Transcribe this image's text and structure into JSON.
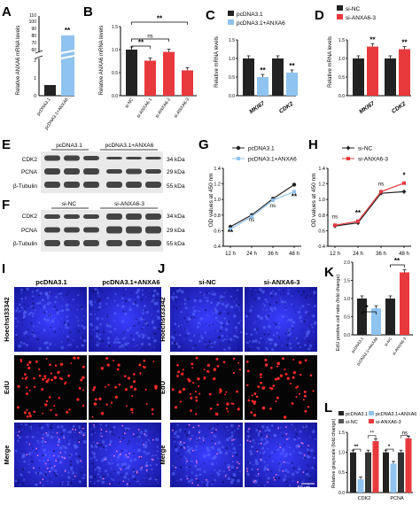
{
  "panels": {
    "A": {
      "letter": "A",
      "ylabel": "Relative ANXA6 mRNA levels",
      "yticks": [
        "0",
        "1",
        "2",
        "60",
        "70",
        "80",
        "90",
        "100",
        "110"
      ],
      "xticks": [
        "pcDNA3.1",
        "pcDNA3.1+ANXA6"
      ],
      "sig": "**"
    },
    "B": {
      "letter": "B",
      "ylabel": "Relative ANXA6 mRNA levels",
      "yticks": [
        "0.0",
        "0.5",
        "1.0",
        "1.5"
      ],
      "xticks": [
        "si-NC",
        "si-ANXA6-1",
        "si-ANXA6-2",
        "si-ANXA6-3"
      ],
      "brackets": [
        "**",
        "ns",
        "**"
      ]
    },
    "C": {
      "letter": "C",
      "ylabel": "Relative mRNA levels",
      "yticks": [
        "0.0",
        "0.5",
        "1.0",
        "1.5"
      ],
      "legend": [
        "pcDNA3.1",
        "pcDNA3.1+ANXA6"
      ],
      "xticks": [
        "MKI67",
        "CDK2"
      ],
      "sig": [
        "**",
        "**"
      ]
    },
    "D": {
      "letter": "D",
      "ylabel": "Relative mRNA levels",
      "yticks": [
        "0.0",
        "0.5",
        "1.0",
        "1.5"
      ],
      "legend": [
        "si-NC",
        "si-ANXA6-3"
      ],
      "xticks": [
        "MKI67",
        "CDK2"
      ],
      "sig": [
        "**",
        "**"
      ]
    },
    "E": {
      "letter": "E",
      "groups": [
        "pcDNA3.1",
        "pcDNA3.1+ANXA6"
      ],
      "rows": [
        "CDK2",
        "PCNA",
        "β-Tubulin"
      ],
      "sizes": [
        "34 kDa",
        "29 kDa",
        "55 kDa"
      ]
    },
    "F": {
      "letter": "F",
      "groups": [
        "si-NC",
        "si-ANXA6-3"
      ],
      "rows": [
        "CDK2",
        "PCNA",
        "β-Tubulin"
      ],
      "sizes": [
        "34 kDa",
        "29 kDa",
        "55 kDa"
      ]
    },
    "G": {
      "letter": "G",
      "ylabel": "OD values at 450 nm",
      "yticks": [
        "0.4",
        "0.6",
        "0.8",
        "1.0",
        "1.2",
        "1.4"
      ],
      "xticks": [
        "12 h",
        "24 h",
        "36 h",
        "48 h"
      ],
      "legend": [
        "pcDNA3.1",
        "pcDNA3.1+ANXA6"
      ],
      "sig": [
        "**",
        "ns",
        "ns",
        "**"
      ]
    },
    "H": {
      "letter": "H",
      "ylabel": "OD values at 450 nm",
      "yticks": [
        "0.4",
        "0.6",
        "0.8",
        "1.0",
        "1.2",
        "1.4"
      ],
      "xticks": [
        "12 h",
        "24 h",
        "36 h",
        "48 h"
      ],
      "legend": [
        "si-NC",
        "si-ANXA6-3"
      ],
      "sig": [
        "ns",
        "**",
        "ns",
        "*"
      ]
    },
    "I": {
      "letter": "I",
      "cols": [
        "pcDNA3.1",
        "pcDNA3.1+ANXA6"
      ],
      "rows": [
        "Hoechst33342",
        "EdU",
        "Merge"
      ]
    },
    "J": {
      "letter": "J",
      "cols": [
        "si-NC",
        "si-ANXA6-3"
      ],
      "rows": [
        "Hoechst33342",
        "EdU",
        "Merge"
      ],
      "scale": "50 μm"
    },
    "K": {
      "letter": "K",
      "ylabel": "EdU positive cell ratio (fold change)",
      "yticks": [
        "0.0",
        "0.5",
        "1.0",
        "1.5",
        "2.0"
      ],
      "xticks": [
        "pcDNA3.1",
        "pcDNA3.1+ANXA6",
        "si-NC",
        "si-ANXA6-3"
      ],
      "sig": [
        "*",
        "**"
      ]
    },
    "L": {
      "letter": "L",
      "ylabel": "Relative grayscale (fold change)",
      "yticks": [
        "0.0",
        "0.5",
        "1.0",
        "1.5"
      ],
      "xticks": [
        "CDK2",
        "PCNA"
      ],
      "legend": [
        "pcDNA3.1",
        "pcDNA3.1+ANXA6",
        "si-NC",
        "si-ANXA6-3"
      ],
      "sig": [
        "**",
        "**",
        "*",
        "ns"
      ]
    }
  },
  "colors": {
    "black": "#222222",
    "light_blue": "#8fc3f0",
    "red": "#e8393d",
    "dark_gray": "#333333"
  },
  "chart_data": [
    {
      "panel": "A",
      "type": "bar",
      "categories": [
        "pcDNA3.1",
        "pcDNA3.1+ANXA6"
      ],
      "values": [
        1,
        105
      ],
      "ylabel": "Relative ANXA6 mRNA levels",
      "ylim": [
        0,
        110
      ],
      "axis_break": [
        2,
        60
      ]
    },
    {
      "panel": "B",
      "type": "bar",
      "categories": [
        "si-NC",
        "si-ANXA6-1",
        "si-ANXA6-2",
        "si-ANXA6-3"
      ],
      "values": [
        1.0,
        0.76,
        0.95,
        0.55
      ],
      "ylabel": "Relative ANXA6 mRNA levels",
      "ylim": [
        0,
        1.5
      ]
    },
    {
      "panel": "C",
      "type": "bar",
      "categories": [
        "MKI67",
        "CDK2"
      ],
      "series": [
        {
          "name": "pcDNA3.1",
          "values": [
            1.0,
            1.0
          ]
        },
        {
          "name": "pcDNA3.1+ANXA6",
          "values": [
            0.5,
            0.62
          ]
        }
      ],
      "ylabel": "Relative mRNA levels",
      "ylim": [
        0,
        1.5
      ]
    },
    {
      "panel": "D",
      "type": "bar",
      "categories": [
        "MKI67",
        "CDK2"
      ],
      "series": [
        {
          "name": "si-NC",
          "values": [
            1.0,
            1.0
          ]
        },
        {
          "name": "si-ANXA6-3",
          "values": [
            1.32,
            1.25
          ]
        }
      ],
      "ylabel": "Relative mRNA levels",
      "ylim": [
        0,
        1.5
      ]
    },
    {
      "panel": "G",
      "type": "line",
      "x": [
        "12 h",
        "24 h",
        "36 h",
        "48 h"
      ],
      "series": [
        {
          "name": "pcDNA3.1",
          "values": [
            0.65,
            0.8,
            1.01,
            1.19
          ]
        },
        {
          "name": "pcDNA3.1+ANXA6",
          "values": [
            0.62,
            0.78,
            0.99,
            1.1
          ]
        }
      ],
      "ylabel": "OD values at 450 nm",
      "ylim": [
        0.4,
        1.4
      ]
    },
    {
      "panel": "H",
      "type": "line",
      "x": [
        "12 h",
        "24 h",
        "36 h",
        "48 h"
      ],
      "series": [
        {
          "name": "si-NC",
          "values": [
            0.66,
            0.7,
            1.08,
            1.1
          ]
        },
        {
          "name": "si-ANXA6-3",
          "values": [
            0.67,
            0.72,
            1.1,
            1.21
          ]
        }
      ],
      "ylabel": "OD values at 450 nm",
      "ylim": [
        0.4,
        1.4
      ]
    },
    {
      "panel": "K",
      "type": "bar",
      "categories": [
        "pcDNA3.1",
        "pcDNA3.1+ANXA6",
        "si-NC",
        "si-ANXA6-3"
      ],
      "values": [
        1.0,
        0.73,
        1.0,
        1.72
      ],
      "ylabel": "EdU positive cell ratio (fold change)",
      "ylim": [
        0,
        2.0
      ]
    },
    {
      "panel": "L",
      "type": "bar",
      "categories": [
        "CDK2",
        "PCNA"
      ],
      "series": [
        {
          "name": "pcDNA3.1",
          "values": [
            1.0,
            1.0
          ]
        },
        {
          "name": "pcDNA3.1+ANXA6",
          "values": [
            0.33,
            0.72
          ]
        },
        {
          "name": "si-NC",
          "values": [
            1.0,
            1.0
          ]
        },
        {
          "name": "si-ANXA6-3",
          "values": [
            1.28,
            1.35
          ]
        }
      ],
      "ylabel": "Relative grayscale (fold change)",
      "ylim": [
        0,
        1.5
      ]
    }
  ]
}
